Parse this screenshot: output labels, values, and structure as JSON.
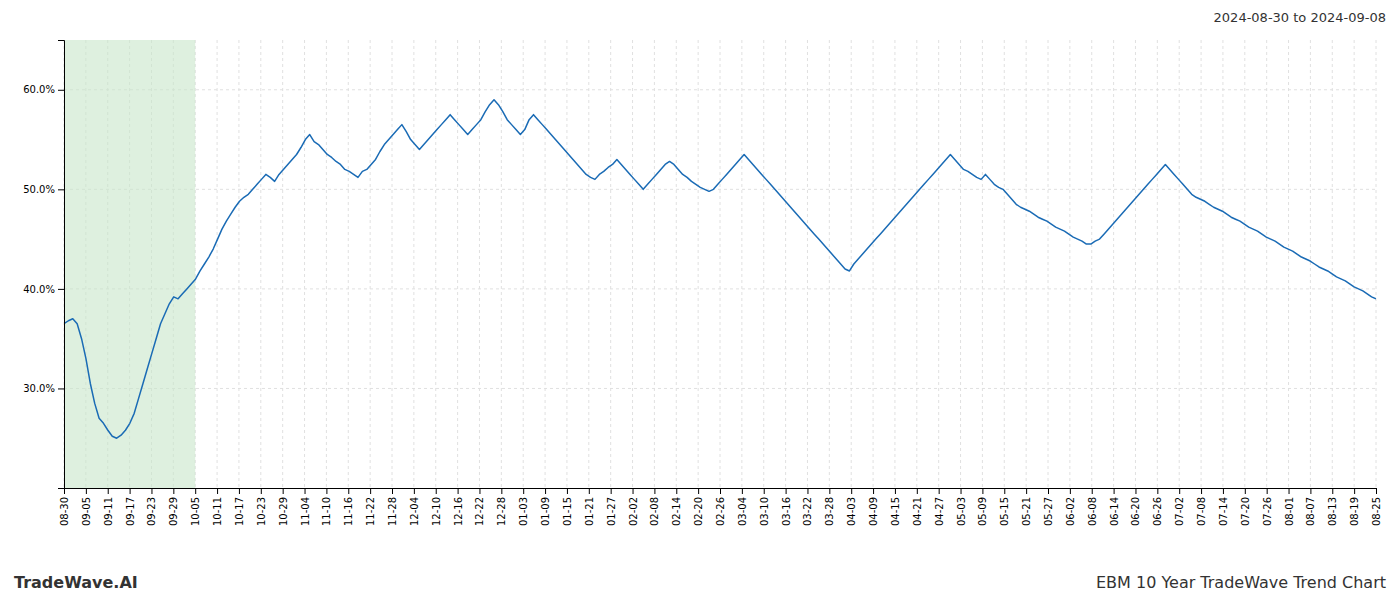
{
  "chart_data": {
    "type": "line",
    "annotations": [
      "2024-08-30 to 2024-09-08",
      "TradeWave.AI",
      "EBM 10 Year TradeWave Trend Chart"
    ],
    "color": "#1a6bb5",
    "bands": [
      {
        "x": [
          0,
          6
        ],
        "color": "#c8e6c9"
      }
    ],
    "xlim": [
      0,
      60
    ],
    "xticks": [
      {
        "value": 0,
        "label": "08-30"
      },
      {
        "value": 1,
        "label": "09-05"
      },
      {
        "value": 2,
        "label": "09-11"
      },
      {
        "value": 3,
        "label": "09-17"
      },
      {
        "value": 4,
        "label": "09-23"
      },
      {
        "value": 5,
        "label": "09-29"
      },
      {
        "value": 6,
        "label": "10-05"
      },
      {
        "value": 7,
        "label": "10-11"
      },
      {
        "value": 8,
        "label": "10-17"
      },
      {
        "value": 9,
        "label": "10-23"
      },
      {
        "value": 10,
        "label": "10-29"
      },
      {
        "value": 11,
        "label": "11-04"
      },
      {
        "value": 12,
        "label": "11-10"
      },
      {
        "value": 13,
        "label": "11-16"
      },
      {
        "value": 14,
        "label": "11-22"
      },
      {
        "value": 15,
        "label": "11-28"
      },
      {
        "value": 16,
        "label": "12-04"
      },
      {
        "value": 17,
        "label": "12-10"
      },
      {
        "value": 18,
        "label": "12-16"
      },
      {
        "value": 19,
        "label": "12-22"
      },
      {
        "value": 20,
        "label": "12-28"
      },
      {
        "value": 21,
        "label": "01-03"
      },
      {
        "value": 22,
        "label": "01-09"
      },
      {
        "value": 23,
        "label": "01-15"
      },
      {
        "value": 24,
        "label": "01-21"
      },
      {
        "value": 25,
        "label": "01-27"
      },
      {
        "value": 26,
        "label": "02-02"
      },
      {
        "value": 27,
        "label": "02-08"
      },
      {
        "value": 28,
        "label": "02-14"
      },
      {
        "value": 29,
        "label": "02-20"
      },
      {
        "value": 30,
        "label": "02-26"
      },
      {
        "value": 31,
        "label": "03-04"
      },
      {
        "value": 32,
        "label": "03-10"
      },
      {
        "value": 33,
        "label": "03-16"
      },
      {
        "value": 34,
        "label": "03-22"
      },
      {
        "value": 35,
        "label": "03-28"
      },
      {
        "value": 36,
        "label": "04-03"
      },
      {
        "value": 37,
        "label": "04-09"
      },
      {
        "value": 38,
        "label": "04-15"
      },
      {
        "value": 39,
        "label": "04-21"
      },
      {
        "value": 40,
        "label": "04-27"
      },
      {
        "value": 41,
        "label": "05-03"
      },
      {
        "value": 42,
        "label": "05-09"
      },
      {
        "value": 43,
        "label": "05-15"
      },
      {
        "value": 44,
        "label": "05-21"
      },
      {
        "value": 45,
        "label": "05-27"
      },
      {
        "value": 46,
        "label": "06-02"
      },
      {
        "value": 47,
        "label": "06-08"
      },
      {
        "value": 48,
        "label": "06-14"
      },
      {
        "value": 49,
        "label": "06-20"
      },
      {
        "value": 50,
        "label": "06-26"
      },
      {
        "value": 51,
        "label": "07-02"
      },
      {
        "value": 52,
        "label": "07-08"
      },
      {
        "value": 53,
        "label": "07-14"
      },
      {
        "value": 54,
        "label": "07-20"
      },
      {
        "value": 55,
        "label": "07-26"
      },
      {
        "value": 56,
        "label": "08-01"
      },
      {
        "value": 57,
        "label": "08-07"
      },
      {
        "value": 58,
        "label": "08-13"
      },
      {
        "value": 59,
        "label": "08-19"
      },
      {
        "value": 60,
        "label": "08-25"
      }
    ],
    "ylim": [
      20.0,
      65.0
    ],
    "yticks": [
      {
        "value": 30.0,
        "label": "30.0%"
      },
      {
        "value": 40.0,
        "label": "40.0%"
      },
      {
        "value": 50.0,
        "label": "50.0%"
      },
      {
        "value": 60.0,
        "label": "60.0%"
      }
    ],
    "grid": true,
    "values": [
      36.5,
      36.8,
      37.0,
      36.5,
      35.0,
      33.0,
      30.5,
      28.5,
      27.0,
      26.5,
      25.8,
      25.2,
      25.0,
      25.3,
      25.8,
      26.5,
      27.5,
      29.0,
      30.5,
      32.0,
      33.5,
      35.0,
      36.5,
      37.5,
      38.5,
      39.2,
      39.0,
      39.5,
      40.0,
      40.5,
      41.0,
      41.8,
      42.5,
      43.2,
      44.0,
      45.0,
      46.0,
      46.8,
      47.5,
      48.2,
      48.8,
      49.2,
      49.5,
      50.0,
      50.5,
      51.0,
      51.5,
      51.2,
      50.8,
      51.5,
      52.0,
      52.5,
      53.0,
      53.5,
      54.2,
      55.0,
      55.5,
      54.8,
      54.5,
      54.0,
      53.5,
      53.2,
      52.8,
      52.5,
      52.0,
      51.8,
      51.5,
      51.2,
      51.8,
      52.0,
      52.5,
      53.0,
      53.8,
      54.5,
      55.0,
      55.5,
      56.0,
      56.5,
      55.8,
      55.0,
      54.5,
      54.0,
      54.5,
      55.0,
      55.5,
      56.0,
      56.5,
      57.0,
      57.5,
      57.0,
      56.5,
      56.0,
      55.5,
      56.0,
      56.5,
      57.0,
      57.8,
      58.5,
      59.0,
      58.5,
      57.8,
      57.0,
      56.5,
      56.0,
      55.5,
      56.0,
      57.0,
      57.5,
      57.0,
      56.5,
      56.0,
      55.5,
      55.0,
      54.5,
      54.0,
      53.5,
      53.0,
      52.5,
      52.0,
      51.5,
      51.2,
      51.0,
      51.5,
      51.8,
      52.2,
      52.5,
      53.0,
      52.5,
      52.0,
      51.5,
      51.0,
      50.5,
      50.0,
      50.5,
      51.0,
      51.5,
      52.0,
      52.5,
      52.8,
      52.5,
      52.0,
      51.5,
      51.2,
      50.8,
      50.5,
      50.2,
      50.0,
      49.8,
      50.0,
      50.5,
      51.0,
      51.5,
      52.0,
      52.5,
      53.0,
      53.5,
      53.0,
      52.5,
      52.0,
      51.5,
      51.0,
      50.5,
      50.0,
      49.5,
      49.0,
      48.5,
      48.0,
      47.5,
      47.0,
      46.5,
      46.0,
      45.5,
      45.0,
      44.5,
      44.0,
      43.5,
      43.0,
      42.5,
      42.0,
      41.8,
      42.5,
      43.0,
      43.5,
      44.0,
      44.5,
      45.0,
      45.5,
      46.0,
      46.5,
      47.0,
      47.5,
      48.0,
      48.5,
      49.0,
      49.5,
      50.0,
      50.5,
      51.0,
      51.5,
      52.0,
      52.5,
      53.0,
      53.5,
      53.0,
      52.5,
      52.0,
      51.8,
      51.5,
      51.2,
      51.0,
      51.5,
      51.0,
      50.5,
      50.2,
      50.0,
      49.5,
      49.0,
      48.5,
      48.2,
      48.0,
      47.8,
      47.5,
      47.2,
      47.0,
      46.8,
      46.5,
      46.2,
      46.0,
      45.8,
      45.5,
      45.2,
      45.0,
      44.8,
      44.5,
      44.5,
      44.8,
      45.0,
      45.5,
      46.0,
      46.5,
      47.0,
      47.5,
      48.0,
      48.5,
      49.0,
      49.5,
      50.0,
      50.5,
      51.0,
      51.5,
      52.0,
      52.5,
      52.0,
      51.5,
      51.0,
      50.5,
      50.0,
      49.5,
      49.2,
      49.0,
      48.8,
      48.5,
      48.2,
      48.0,
      47.8,
      47.5,
      47.2,
      47.0,
      46.8,
      46.5,
      46.2,
      46.0,
      45.8,
      45.5,
      45.2,
      45.0,
      44.8,
      44.5,
      44.2,
      44.0,
      43.8,
      43.5,
      43.2,
      43.0,
      42.8,
      42.5,
      42.2,
      42.0,
      41.8,
      41.5,
      41.2,
      41.0,
      40.8,
      40.5,
      40.2,
      40.0,
      39.8,
      39.5,
      39.2,
      39.0
    ]
  }
}
